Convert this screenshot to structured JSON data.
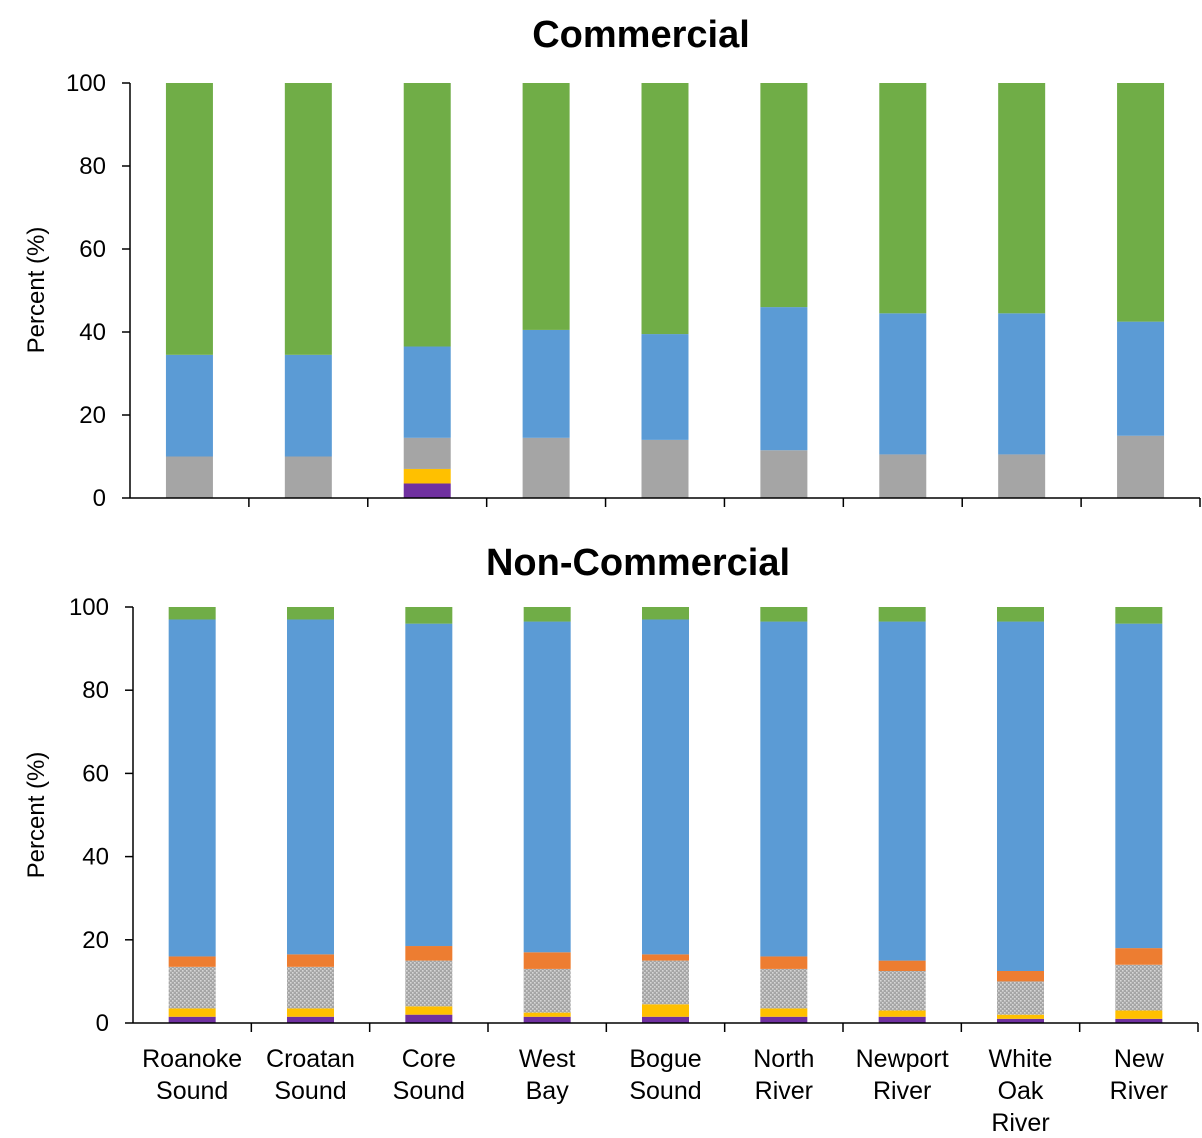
{
  "chart_data": [
    {
      "type": "bar",
      "stacked": true,
      "title": "Commercial",
      "ylabel": "Percent (%)",
      "ylim": [
        0,
        100
      ],
      "yticks": [
        "0",
        "20",
        "40",
        "60",
        "80",
        "100"
      ],
      "grid": false,
      "categories": [
        "Roanoke Sound",
        "Croatan Sound",
        "Core Sound",
        "West Bay",
        "Bogue Sound",
        "North River",
        "Newport River",
        "White Oak River",
        "New River"
      ],
      "series": [
        {
          "color": "#7030a0",
          "values": [
            0,
            0,
            3.5,
            0,
            0,
            0,
            0,
            0,
            0
          ]
        },
        {
          "color": "#ffc000",
          "values": [
            0,
            0,
            3.5,
            0,
            0,
            0,
            0,
            0,
            0
          ]
        },
        {
          "color": "#a5a5a5",
          "values": [
            10,
            10,
            7.5,
            14.5,
            14,
            11.5,
            10.5,
            10.5,
            15
          ]
        },
        {
          "color": "#5b9bd5",
          "values": [
            24.5,
            24.5,
            22,
            26,
            25.5,
            34.5,
            34,
            34,
            27.5
          ]
        },
        {
          "color": "#70ad47",
          "values": [
            65.5,
            65.5,
            63.5,
            59.5,
            60.5,
            54,
            55.5,
            55.5,
            57.5
          ]
        }
      ]
    },
    {
      "type": "bar",
      "stacked": true,
      "title": "Non-Commercial",
      "ylabel": "Percent (%)",
      "ylim": [
        0,
        100
      ],
      "yticks": [
        "0",
        "20",
        "40",
        "60",
        "80",
        "100"
      ],
      "grid": false,
      "categories": [
        "Roanoke Sound",
        "Croatan Sound",
        "Core Sound",
        "West Bay",
        "Bogue Sound",
        "North River",
        "Newport River",
        "White Oak River",
        "New River"
      ],
      "category_lines": [
        [
          "Roanoke",
          "Sound"
        ],
        [
          "Croatan",
          "Sound"
        ],
        [
          "Core",
          "Sound"
        ],
        [
          "West",
          "Bay"
        ],
        [
          "Bogue",
          "Sound"
        ],
        [
          "North",
          "River"
        ],
        [
          "Newport",
          "River"
        ],
        [
          "White",
          "Oak",
          "River"
        ],
        [
          "New",
          "River"
        ]
      ],
      "series": [
        {
          "color": "#7030a0",
          "values": [
            1.5,
            1.5,
            2,
            1.5,
            1.5,
            1.5,
            1.5,
            1,
            1
          ]
        },
        {
          "color": "#ffc000",
          "values": [
            2,
            2,
            2,
            1,
            3,
            2,
            1.5,
            1,
            2
          ]
        },
        {
          "color": "#a5a5a5",
          "pattern": "dotted",
          "values": [
            10,
            10,
            11,
            10.5,
            10.5,
            9.5,
            9.5,
            8,
            11
          ]
        },
        {
          "color": "#ed7d31",
          "values": [
            2.5,
            3,
            3.5,
            4,
            1.5,
            3,
            2.5,
            2.5,
            4
          ]
        },
        {
          "color": "#5b9bd5",
          "values": [
            81,
            80.5,
            77.5,
            79.5,
            80.5,
            80.5,
            81.5,
            84,
            78
          ]
        },
        {
          "color": "#70ad47",
          "values": [
            3,
            3,
            4,
            3.5,
            3,
            3.5,
            3.5,
            3.5,
            4
          ]
        }
      ]
    }
  ]
}
